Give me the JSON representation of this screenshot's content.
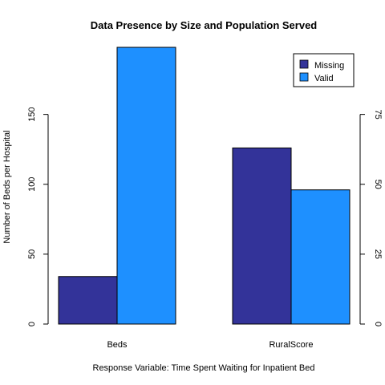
{
  "chart_data": {
    "type": "bar",
    "title": "Data Presence by Size and Population Served",
    "xlabel": "Response Variable: Time Spent Waiting for Inpatient Bed",
    "ylabel": "Number of Beds per Hospital",
    "categories": [
      "Beds",
      "RuralScore"
    ],
    "series": [
      {
        "name": "Missing",
        "color": "#333399",
        "values": [
          34,
          126
        ]
      },
      {
        "name": "Valid",
        "color": "#1e90ff",
        "values": [
          198,
          96
        ]
      }
    ],
    "notes": "RuralScore bars are plotted against the right axis, whose 0-75 ticks align with the left 0-150 ticks; the values above are in left-axis units.",
    "left_axis": {
      "ylim": [
        0,
        198
      ],
      "ticks": [
        "0",
        "50",
        "100",
        "150"
      ]
    },
    "right_axis": {
      "ylim": [
        0,
        99
      ],
      "ticks": [
        "0",
        "25",
        "50",
        "75"
      ]
    },
    "legend": "top-right"
  }
}
